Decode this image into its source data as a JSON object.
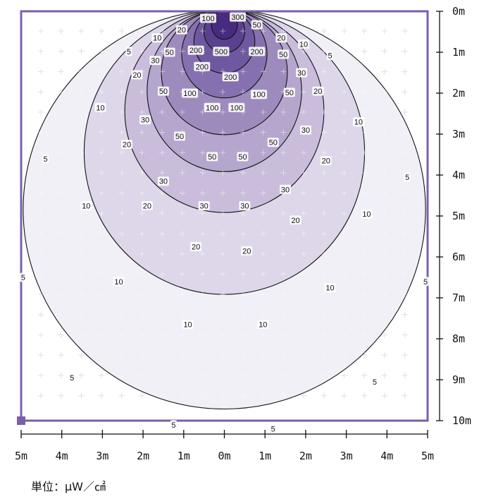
{
  "chart_data": {
    "type": "heatmap",
    "subtype": "isolux contour plot",
    "unit_label": "単位：μW／㎠",
    "x_tick_labels": [
      "5m",
      "4m",
      "3m",
      "2m",
      "1m",
      "0m",
      "1m",
      "2m",
      "3m",
      "4m",
      "5m"
    ],
    "y_tick_labels": [
      "0m",
      "1m",
      "2m",
      "3m",
      "4m",
      "5m",
      "6m",
      "7m",
      "8m",
      "9m",
      "10m"
    ],
    "x_range_m": [
      -5,
      5
    ],
    "y_range_m": [
      0,
      10
    ],
    "contour_levels": [
      5,
      10,
      20,
      30,
      50,
      100,
      200,
      300,
      500
    ],
    "contours": [
      {
        "level": 5,
        "half_width_m": 4.95,
        "depth_m": 9.75,
        "color": "#f1eef6"
      },
      {
        "level": 10,
        "half_width_m": 3.45,
        "depth_m": 6.95,
        "color": "#dcd4e8"
      },
      {
        "level": 20,
        "half_width_m": 2.45,
        "depth_m": 4.95,
        "color": "#c6bad9"
      },
      {
        "level": 30,
        "half_width_m": 1.9,
        "depth_m": 3.95,
        "color": "#b2a3cc"
      },
      {
        "level": 50,
        "half_width_m": 1.55,
        "depth_m": 3.05,
        "color": "#9b88bd"
      },
      {
        "level": 100,
        "half_width_m": 1.05,
        "depth_m": 2.15,
        "color": "#836eae"
      },
      {
        "level": 200,
        "half_width_m": 0.75,
        "depth_m": 1.55,
        "color": "#6b559d"
      },
      {
        "level": 300,
        "half_width_m": 0.5,
        "depth_m": 1.05,
        "color": "#573f8d"
      },
      {
        "level": 500,
        "half_width_m": 0.32,
        "depth_m": 0.72,
        "color": "#44297c"
      }
    ],
    "contour_labels": [
      {
        "text": "100",
        "x": -0.4,
        "y": 0.17
      },
      {
        "text": "300",
        "x": 0.33,
        "y": 0.14
      },
      {
        "text": "20",
        "x": -1.05,
        "y": 0.45
      },
      {
        "text": "50",
        "x": 0.8,
        "y": 0.33
      },
      {
        "text": "10",
        "x": -1.65,
        "y": 0.65
      },
      {
        "text": "20",
        "x": 1.4,
        "y": 0.65
      },
      {
        "text": "10",
        "x": 1.95,
        "y": 0.8
      },
      {
        "text": "5",
        "x": -2.35,
        "y": 0.98
      },
      {
        "text": "5",
        "x": 2.6,
        "y": 1.08
      },
      {
        "text": "50",
        "x": -1.35,
        "y": 1.0
      },
      {
        "text": "200",
        "x": -0.7,
        "y": 0.95
      },
      {
        "text": "500",
        "x": -0.08,
        "y": 0.98
      },
      {
        "text": "200",
        "x": 0.8,
        "y": 0.98
      },
      {
        "text": "50",
        "x": 1.45,
        "y": 1.05
      },
      {
        "text": "30",
        "x": -1.7,
        "y": 1.2
      },
      {
        "text": "200",
        "x": -0.55,
        "y": 1.35
      },
      {
        "text": "30",
        "x": 1.9,
        "y": 1.5
      },
      {
        "text": "20",
        "x": -2.15,
        "y": 1.55
      },
      {
        "text": "200",
        "x": 0.15,
        "y": 1.6
      },
      {
        "text": "50",
        "x": -1.5,
        "y": 1.95
      },
      {
        "text": "100",
        "x": -0.85,
        "y": 2.0
      },
      {
        "text": "100",
        "x": 0.85,
        "y": 2.03
      },
      {
        "text": "50",
        "x": 1.6,
        "y": 1.98
      },
      {
        "text": "20",
        "x": 2.3,
        "y": 1.95
      },
      {
        "text": "10",
        "x": -3.05,
        "y": 2.35
      },
      {
        "text": "100",
        "x": -0.3,
        "y": 2.35
      },
      {
        "text": "100",
        "x": 0.3,
        "y": 2.35
      },
      {
        "text": "30",
        "x": -1.95,
        "y": 2.65
      },
      {
        "text": "10",
        "x": 3.3,
        "y": 2.7
      },
      {
        "text": "30",
        "x": 2.0,
        "y": 2.9
      },
      {
        "text": "50",
        "x": -1.1,
        "y": 3.05
      },
      {
        "text": "50",
        "x": 1.2,
        "y": 3.2
      },
      {
        "text": "20",
        "x": -2.4,
        "y": 3.25
      },
      {
        "text": "50",
        "x": -0.3,
        "y": 3.55
      },
      {
        "text": "50",
        "x": 0.45,
        "y": 3.55
      },
      {
        "text": "20",
        "x": 2.5,
        "y": 3.65
      },
      {
        "text": "5",
        "x": -4.4,
        "y": 3.6
      },
      {
        "text": "5",
        "x": 4.5,
        "y": 4.05
      },
      {
        "text": "30",
        "x": -1.5,
        "y": 4.15
      },
      {
        "text": "30",
        "x": 1.5,
        "y": 4.35
      },
      {
        "text": "10",
        "x": -3.4,
        "y": 4.75
      },
      {
        "text": "30",
        "x": -0.5,
        "y": 4.75
      },
      {
        "text": "30",
        "x": 0.5,
        "y": 4.75
      },
      {
        "text": "20",
        "x": -1.9,
        "y": 4.75
      },
      {
        "text": "10",
        "x": 3.5,
        "y": 4.95
      },
      {
        "text": "20",
        "x": 1.75,
        "y": 5.1
      },
      {
        "text": "20",
        "x": -0.7,
        "y": 5.75
      },
      {
        "text": "20",
        "x": 0.55,
        "y": 5.85
      },
      {
        "text": "5",
        "x": -4.95,
        "y": 6.5
      },
      {
        "text": "10",
        "x": -2.6,
        "y": 6.6
      },
      {
        "text": "5",
        "x": 4.95,
        "y": 6.6
      },
      {
        "text": "10",
        "x": 2.6,
        "y": 6.75
      },
      {
        "text": "10",
        "x": -0.9,
        "y": 7.65
      },
      {
        "text": "10",
        "x": 0.95,
        "y": 7.65
      },
      {
        "text": "5",
        "x": -3.75,
        "y": 8.95
      },
      {
        "text": "5",
        "x": 3.7,
        "y": 9.05
      },
      {
        "text": "5",
        "x": -1.25,
        "y": 10.1
      },
      {
        "text": "5",
        "x": 1.2,
        "y": 10.2
      }
    ]
  },
  "colors": {
    "frame": "#7b5fa8",
    "grid_cross": "#c8c8c8",
    "contour_line": "#111111",
    "tick": "#111111"
  }
}
